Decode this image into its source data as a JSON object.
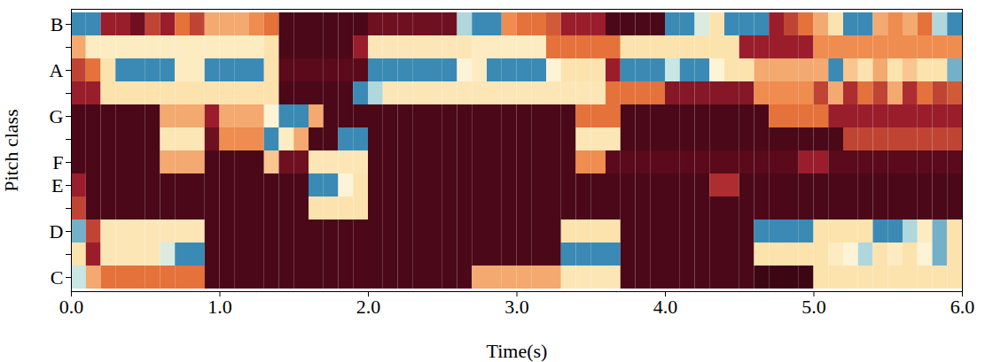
{
  "chart_data": {
    "type": "heatmap",
    "x_label": "Time(s)",
    "y_label": "Pitch class",
    "categories": [
      "C",
      null,
      "D",
      null,
      "E",
      "F",
      null,
      "G",
      null,
      "A",
      null,
      "B"
    ],
    "x_bins": [
      0,
      0.1,
      0.2,
      0.3,
      0.4,
      0.5,
      0.6,
      0.7,
      0.8,
      0.9,
      1.0,
      1.1,
      1.2,
      1.3,
      1.4,
      1.5,
      1.6,
      1.7,
      1.8,
      1.9,
      2.0,
      2.1,
      2.2,
      2.3,
      2.4,
      2.5,
      2.6,
      2.7,
      2.8,
      2.9,
      3.0,
      3.1,
      3.2,
      3.3,
      3.4,
      3.5,
      3.6,
      3.7,
      3.8,
      3.9,
      4.0,
      4.1,
      4.2,
      4.3,
      4.4,
      4.5,
      4.6,
      4.7,
      4.8,
      4.9,
      5.0,
      5.1,
      5.2,
      5.3,
      5.4,
      5.5,
      5.6,
      5.7,
      5.8,
      5.9,
      6.0
    ],
    "xlim": [
      0,
      6
    ],
    "xticks": [
      {
        "value": 0,
        "label": "0.0"
      },
      {
        "value": 1,
        "label": "1.0"
      },
      {
        "value": 2,
        "label": "2.0"
      },
      {
        "value": 3,
        "label": "3.0"
      },
      {
        "value": 4,
        "label": "4.0"
      },
      {
        "value": 5,
        "label": "5.0"
      },
      {
        "value": 6,
        "label": "6.0"
      }
    ],
    "zlim": [
      0,
      1
    ],
    "z": [
      [
        0.88,
        0.6,
        0.5,
        0.5,
        0.5,
        0.5,
        0.5,
        0.5,
        0.5,
        0.1,
        0.1,
        0.1,
        0.1,
        0.1,
        0.1,
        0.1,
        0.1,
        0.1,
        0.1,
        0.1,
        0.1,
        0.1,
        0.1,
        0.1,
        0.1,
        0.1,
        0.1,
        0.6,
        0.6,
        0.6,
        0.6,
        0.6,
        0.6,
        0.72,
        0.72,
        0.72,
        0.72,
        0.1,
        0.1,
        0.1,
        0.1,
        0.1,
        0.1,
        0.1,
        0.1,
        0.1,
        0.05,
        0.05,
        0.05,
        0.05,
        0.7,
        0.7,
        0.7,
        0.7,
        0.7,
        0.7,
        0.7,
        0.7,
        0.7,
        0.7
      ],
      [
        0.7,
        0.3,
        0.72,
        0.72,
        0.72,
        0.72,
        0.85,
        1,
        1,
        0.1,
        0.1,
        0.1,
        0.1,
        0.1,
        0.1,
        0.1,
        0.1,
        0.1,
        0.1,
        0.1,
        0.1,
        0.1,
        0.1,
        0.1,
        0.1,
        0.1,
        0.1,
        0.1,
        0.1,
        0.1,
        0.1,
        0.1,
        0.1,
        1,
        1,
        1,
        1,
        0.1,
        0.1,
        0.1,
        0.1,
        0.1,
        0.1,
        0.1,
        0.1,
        0.1,
        0.7,
        0.7,
        0.7,
        0.7,
        0.7,
        0.75,
        0.8,
        0.9,
        0.7,
        0.75,
        0.7,
        0.8,
        0.95,
        0.7
      ],
      [
        0.95,
        0.4,
        0.72,
        0.72,
        0.72,
        0.72,
        0.72,
        0.72,
        0.72,
        0.1,
        0.1,
        0.1,
        0.1,
        0.1,
        0.1,
        0.1,
        0.1,
        0.1,
        0.1,
        0.1,
        0.1,
        0.1,
        0.1,
        0.1,
        0.1,
        0.1,
        0.1,
        0.1,
        0.1,
        0.1,
        0.1,
        0.1,
        0.1,
        0.7,
        0.7,
        0.7,
        0.7,
        0.1,
        0.1,
        0.1,
        0.1,
        0.1,
        0.1,
        0.1,
        0.1,
        0.1,
        1,
        1,
        1,
        1,
        0.7,
        0.7,
        0.7,
        0.7,
        1,
        1,
        0.9,
        0.75,
        0.95,
        0.7
      ],
      [
        0.4,
        0.1,
        0.1,
        0.1,
        0.1,
        0.1,
        0.1,
        0.1,
        0.1,
        0.1,
        0.1,
        0.1,
        0.1,
        0.1,
        0.1,
        0.1,
        0.7,
        0.7,
        0.7,
        0.7,
        0.1,
        0.1,
        0.1,
        0.1,
        0.1,
        0.1,
        0.1,
        0.1,
        0.1,
        0.1,
        0.1,
        0.1,
        0.1,
        0.1,
        0.1,
        0.1,
        0.1,
        0.1,
        0.1,
        0.1,
        0.1,
        0.1,
        0.1,
        0.1,
        0.1,
        0.1,
        0.1,
        0.1,
        0.1,
        0.1,
        0.1,
        0.1,
        0.1,
        0.1,
        0.1,
        0.1,
        0.1,
        0.1,
        0.1,
        0.1
      ],
      [
        0.3,
        0.1,
        0.1,
        0.1,
        0.1,
        0.1,
        0.1,
        0.1,
        0.1,
        0.1,
        0.1,
        0.1,
        0.1,
        0.1,
        0.1,
        0.1,
        1,
        1,
        0.8,
        0.7,
        0.1,
        0.1,
        0.1,
        0.1,
        0.1,
        0.1,
        0.1,
        0.1,
        0.1,
        0.1,
        0.1,
        0.1,
        0.1,
        0.1,
        0.1,
        0.1,
        0.1,
        0.1,
        0.1,
        0.1,
        0.1,
        0.1,
        0.1,
        0.35,
        0.35,
        0.1,
        0.1,
        0.1,
        0.1,
        0.1,
        0.1,
        0.1,
        0.1,
        0.1,
        0.1,
        0.1,
        0.1,
        0.1,
        0.1,
        0.1
      ],
      [
        0.1,
        0.1,
        0.1,
        0.1,
        0.1,
        0.1,
        0.6,
        0.6,
        0.6,
        0.1,
        0.1,
        0.1,
        0.1,
        0.65,
        0.2,
        0.2,
        0.72,
        0.72,
        0.72,
        0.72,
        0.1,
        0.1,
        0.1,
        0.1,
        0.1,
        0.1,
        0.1,
        0.1,
        0.1,
        0.1,
        0.1,
        0.1,
        0.1,
        0.1,
        0.55,
        0.55,
        0.15,
        0.15,
        0.15,
        0.15,
        0.15,
        0.15,
        0.15,
        0.15,
        0.15,
        0.15,
        0.15,
        0.15,
        0.15,
        0.3,
        0.3,
        0.15,
        0.15,
        0.15,
        0.15,
        0.15,
        0.15,
        0.15,
        0.15,
        0.15
      ],
      [
        0.1,
        0.1,
        0.1,
        0.1,
        0.1,
        0.1,
        0.72,
        0.72,
        0.72,
        0.2,
        0.55,
        0.55,
        0.55,
        1,
        0.75,
        0.6,
        0.1,
        0.1,
        1,
        1,
        0.1,
        0.1,
        0.1,
        0.1,
        0.1,
        0.1,
        0.1,
        0.1,
        0.1,
        0.1,
        0.1,
        0.1,
        0.1,
        0.1,
        0.72,
        0.72,
        0.72,
        0.1,
        0.1,
        0.1,
        0.1,
        0.1,
        0.1,
        0.1,
        0.1,
        0.1,
        0.1,
        0.1,
        0.1,
        0.1,
        0.1,
        0.1,
        0.4,
        0.4,
        0.4,
        0.4,
        0.4,
        0.4,
        0.4,
        0.4
      ],
      [
        0.1,
        0.1,
        0.1,
        0.1,
        0.1,
        0.1,
        0.6,
        0.6,
        0.6,
        0.3,
        0.6,
        0.6,
        0.6,
        0.8,
        1,
        1,
        0.6,
        0.1,
        0.1,
        0.1,
        0.1,
        0.1,
        0.1,
        0.1,
        0.1,
        0.1,
        0.1,
        0.1,
        0.1,
        0.1,
        0.1,
        0.1,
        0.1,
        0.1,
        0.5,
        0.5,
        0.5,
        0.1,
        0.1,
        0.1,
        0.1,
        0.1,
        0.1,
        0.1,
        0.1,
        0.1,
        0.1,
        0.5,
        0.5,
        0.5,
        0.5,
        0.3,
        0.3,
        0.3,
        0.3,
        0.3,
        0.3,
        0.3,
        0.3,
        0.3
      ],
      [
        0.3,
        0.3,
        0.7,
        0.7,
        0.7,
        0.7,
        0.7,
        0.7,
        0.7,
        0.7,
        0.7,
        0.7,
        0.7,
        0.7,
        0.1,
        0.1,
        0.1,
        0.1,
        0.1,
        1,
        0.9,
        0.72,
        0.72,
        0.72,
        0.72,
        0.72,
        0.72,
        0.72,
        0.72,
        0.72,
        0.72,
        0.72,
        0.72,
        0.72,
        0.72,
        0.72,
        0.5,
        0.5,
        0.5,
        0.5,
        0.25,
        0.25,
        0.25,
        0.25,
        0.25,
        0.25,
        0.55,
        0.55,
        0.55,
        0.55,
        0.4,
        0.6,
        0.35,
        0.5,
        0.4,
        0.6,
        0.35,
        0.5,
        0.4,
        0.45
      ],
      [
        0.4,
        0.5,
        0.7,
        1,
        1,
        1,
        1,
        0.75,
        0.75,
        1,
        1,
        1,
        1,
        0.7,
        0.15,
        0.15,
        0.15,
        0.15,
        0.15,
        0.15,
        1,
        1,
        1,
        1,
        1,
        1,
        0.8,
        0.75,
        1,
        1,
        1,
        1,
        0.8,
        0.7,
        0.7,
        0.7,
        0.3,
        1,
        1,
        1,
        0.88,
        1,
        1,
        0.8,
        0.7,
        0.7,
        0.6,
        0.6,
        0.6,
        0.6,
        0.6,
        1,
        0.65,
        0.7,
        0.6,
        0.7,
        0.65,
        0.7,
        0.7,
        0.95
      ],
      [
        0.6,
        0.75,
        0.75,
        0.75,
        0.75,
        0.75,
        0.75,
        0.75,
        0.75,
        0.75,
        0.75,
        0.75,
        0.75,
        0.7,
        0.1,
        0.1,
        0.1,
        0.1,
        0.1,
        0.3,
        0.72,
        0.72,
        0.72,
        0.72,
        0.72,
        0.72,
        0.72,
        0.75,
        0.75,
        0.75,
        0.75,
        0.75,
        0.5,
        0.5,
        0.5,
        0.5,
        0.5,
        0.7,
        0.7,
        0.7,
        0.7,
        0.7,
        0.7,
        0.7,
        0.7,
        0.3,
        0.3,
        0.3,
        0.3,
        0.3,
        0.55,
        0.55,
        0.55,
        0.55,
        0.55,
        0.55,
        0.55,
        0.55,
        0.55,
        0.55
      ],
      [
        1,
        1,
        0.3,
        0.3,
        0.2,
        0.4,
        0.3,
        0.5,
        0.4,
        0.6,
        0.6,
        0.6,
        0.55,
        0.5,
        0.1,
        0.1,
        0.1,
        0.1,
        0.1,
        0.1,
        0.2,
        0.2,
        0.2,
        0.2,
        0.2,
        0.2,
        0.9,
        1,
        1,
        0.55,
        0.5,
        0.5,
        0.45,
        0.3,
        0.3,
        0.3,
        0.1,
        0.1,
        0.1,
        0.1,
        1,
        1,
        0.85,
        0.7,
        1,
        1,
        1,
        0.3,
        0.4,
        0.5,
        0.6,
        0.7,
        1,
        1,
        0.6,
        0.55,
        0.6,
        0.5,
        0.9,
        1
      ]
    ]
  }
}
